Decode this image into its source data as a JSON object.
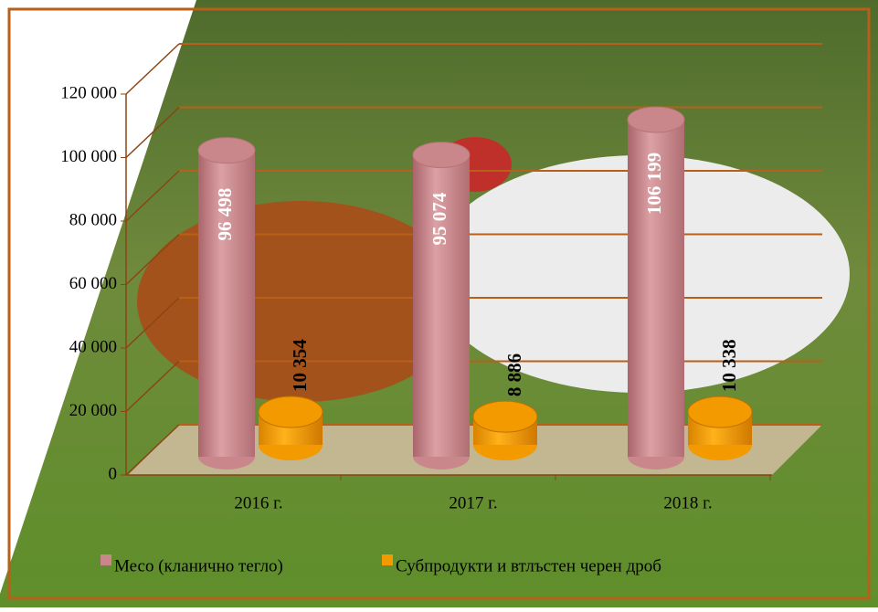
{
  "chart_data": {
    "type": "bar3d",
    "categories": [
      "2016 г.",
      "2017 г.",
      "2018 г."
    ],
    "series": [
      {
        "name": "Месо (кланично тегло)",
        "color": "#c9878c",
        "values": [
          96498,
          95074,
          106199
        ],
        "value_labels": [
          "96 498",
          "95 074",
          "106 199"
        ]
      },
      {
        "name": "Субпродукти и втлъстен черен дроб",
        "color": "#f29a00",
        "values": [
          10354,
          8886,
          10338
        ],
        "value_labels": [
          "10 354",
          "8 886",
          "10 338"
        ]
      }
    ],
    "ylim": [
      0,
      120000
    ],
    "yticks": [
      0,
      {
        "value": 20000,
        "label": "20 000"
      },
      {
        "value": 40000,
        "label": "40 000"
      },
      {
        "value": 60000,
        "label": "60 000"
      },
      {
        "value": 80000,
        "label": "80 000"
      },
      {
        "value": 100000,
        "label": "100 000"
      },
      {
        "value": 120000,
        "label": "120 000"
      }
    ],
    "grid": true
  }
}
